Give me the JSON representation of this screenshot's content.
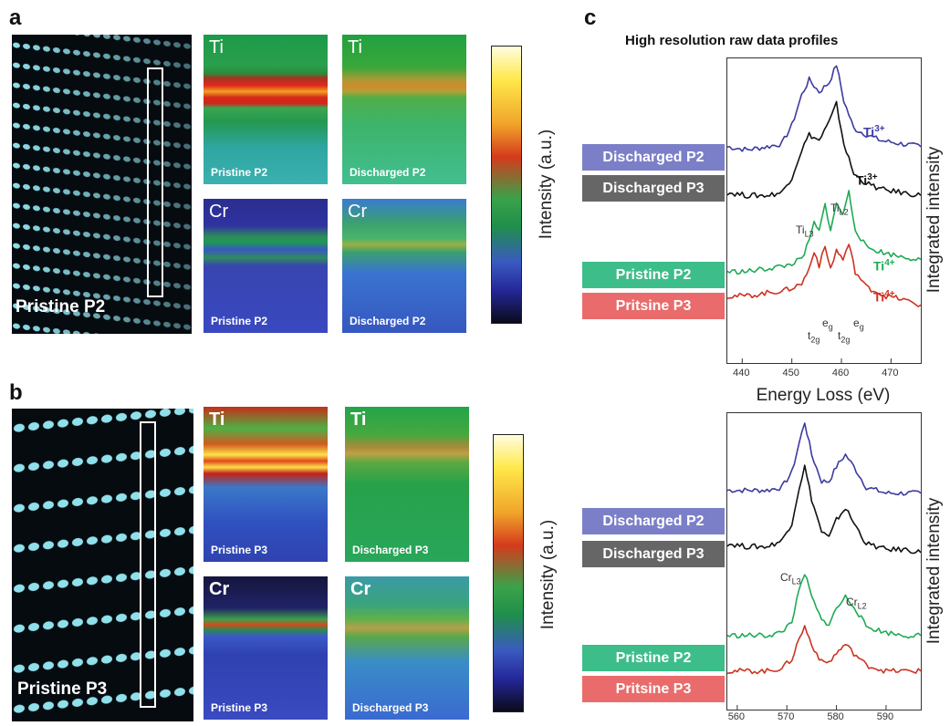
{
  "panels": {
    "a": "a",
    "b": "b",
    "c": "c"
  },
  "stem": {
    "top": "Pristine P2",
    "bottom": "Pristine P3"
  },
  "maps": {
    "a_ti_pristine": {
      "element": "Ti",
      "caption": "Pristine P2"
    },
    "a_ti_discharged": {
      "element": "Ti",
      "caption": "Discharged P2"
    },
    "a_cr_pristine": {
      "element": "Cr",
      "caption": "Pristine P2"
    },
    "a_cr_discharged": {
      "element": "Cr",
      "caption": "Discharged P2"
    },
    "b_ti_pristine": {
      "element": "Ti",
      "caption": "Pristine P3"
    },
    "b_ti_discharged": {
      "element": "Ti",
      "caption": "Discharged P3"
    },
    "b_cr_pristine": {
      "element": "Cr",
      "caption": "Pristine P3"
    },
    "b_cr_discharged": {
      "element": "Cr",
      "caption": "Discharged P3"
    }
  },
  "colorbar": {
    "label": "Intensity (a.u.)"
  },
  "panel_c": {
    "title": "High resolution raw data profiles"
  },
  "legend": {
    "discharged_p2": "Discharged P2",
    "discharged_p3": "Discharged P3",
    "pristine_p2": "Pristine P2",
    "pristine_p3": "Pritsine P3"
  },
  "colors": {
    "discharged_p2": "#3b3ba0",
    "discharged_p3": "#111111",
    "pristine_p2": "#1faa55",
    "pristine_p3": "#cc3322",
    "tag_discharged_p2": "#7b7fc8",
    "tag_discharged_p3": "#666666",
    "tag_pristine_p2": "#3dbd8a",
    "tag_pristine_p3": "#ea6b6b"
  },
  "ions": {
    "ti3_p2": "Ti",
    "ti3_p3": "Ti",
    "ti4_p2": "Ti",
    "ti4_p3": "Ti",
    "charge3": "3+",
    "charge4": "4+"
  },
  "annotations": {
    "ti": "Ti",
    "l3": "L3",
    "l2": "L2",
    "t2g": "t",
    "t2g_sub": "2g",
    "eg": "e",
    "eg_sub": "g",
    "cr": "Cr"
  },
  "chart_data": [
    {
      "type": "line",
      "title": "High resolution raw data profiles",
      "xlabel": "Energy Loss (eV)",
      "ylabel": "Integrated intensity",
      "xlim": [
        437,
        476
      ],
      "xticks": [
        440,
        450,
        460,
        470
      ],
      "series": [
        {
          "name": "Discharged P2",
          "x": [
            437,
            441,
            445,
            448,
            450,
            452,
            453.5,
            455.5,
            457.5,
            459,
            460.5,
            462.5,
            465,
            468,
            472,
            476
          ],
          "y": [
            0.71,
            0.7,
            0.71,
            0.72,
            0.78,
            0.88,
            0.93,
            0.89,
            0.92,
            0.98,
            0.86,
            0.77,
            0.75,
            0.73,
            0.72,
            0.71
          ]
        },
        {
          "name": "Discharged P3",
          "x": [
            437,
            441,
            445,
            448,
            450,
            452,
            453.5,
            455.5,
            457.5,
            459,
            460.5,
            462.5,
            465,
            468,
            472,
            476
          ],
          "y": [
            0.56,
            0.55,
            0.55,
            0.56,
            0.61,
            0.7,
            0.75,
            0.73,
            0.79,
            0.85,
            0.72,
            0.62,
            0.59,
            0.57,
            0.56,
            0.55
          ]
        },
        {
          "name": "Pristine P2",
          "x": [
            437,
            441,
            445,
            449,
            452,
            453.5,
            454.5,
            455.5,
            456.7,
            457.8,
            459,
            460.3,
            461.5,
            462.8,
            465,
            469,
            472,
            476
          ],
          "y": [
            0.3,
            0.3,
            0.31,
            0.32,
            0.34,
            0.4,
            0.46,
            0.43,
            0.52,
            0.44,
            0.52,
            0.49,
            0.56,
            0.44,
            0.38,
            0.36,
            0.35,
            0.34
          ]
        },
        {
          "name": "Pritsine P3",
          "x": [
            437,
            441,
            445,
            449,
            452,
            453.5,
            454.5,
            455.5,
            456.7,
            457.8,
            459,
            460.3,
            461.5,
            462.8,
            465,
            469,
            472,
            476
          ],
          "y": [
            0.22,
            0.22,
            0.23,
            0.24,
            0.26,
            0.31,
            0.37,
            0.32,
            0.38,
            0.31,
            0.37,
            0.34,
            0.39,
            0.3,
            0.25,
            0.22,
            0.21,
            0.19
          ]
        }
      ]
    },
    {
      "type": "line",
      "ylabel": "Integrated intensity",
      "xlim": [
        558,
        597
      ],
      "xticks": [
        560,
        570,
        580,
        590
      ],
      "series": [
        {
          "name": "Discharged P2",
          "x": [
            558,
            562,
            566,
            569,
            571,
            572.5,
            573.6,
            575,
            577,
            578.5,
            580,
            581.8,
            583.5,
            586,
            590,
            594,
            597
          ],
          "y": [
            0.74,
            0.74,
            0.74,
            0.75,
            0.8,
            0.9,
            0.97,
            0.86,
            0.77,
            0.77,
            0.82,
            0.86,
            0.82,
            0.75,
            0.73,
            0.73,
            0.73
          ]
        },
        {
          "name": "Discharged P3",
          "x": [
            558,
            562,
            566,
            569,
            571,
            572.5,
            573.6,
            575,
            577,
            578.5,
            580,
            581.8,
            583.5,
            586,
            590,
            594,
            597
          ],
          "y": [
            0.56,
            0.55,
            0.55,
            0.57,
            0.63,
            0.75,
            0.82,
            0.71,
            0.6,
            0.58,
            0.64,
            0.68,
            0.63,
            0.56,
            0.54,
            0.54,
            0.53
          ]
        },
        {
          "name": "Pristine P2",
          "x": [
            558,
            562,
            566,
            569,
            571,
            572.5,
            573.6,
            575,
            577,
            578.5,
            580,
            581.8,
            583.5,
            586,
            590,
            594,
            597
          ],
          "y": [
            0.25,
            0.25,
            0.25,
            0.26,
            0.3,
            0.4,
            0.46,
            0.38,
            0.3,
            0.29,
            0.34,
            0.38,
            0.35,
            0.28,
            0.26,
            0.25,
            0.25
          ]
        },
        {
          "name": "Pritsine P3",
          "x": [
            558,
            562,
            566,
            569,
            571,
            572.5,
            573.6,
            575,
            577,
            578.5,
            580,
            581.8,
            583.5,
            586,
            590,
            594,
            597
          ],
          "y": [
            0.13,
            0.13,
            0.13,
            0.14,
            0.17,
            0.24,
            0.28,
            0.22,
            0.16,
            0.16,
            0.19,
            0.22,
            0.19,
            0.15,
            0.13,
            0.13,
            0.13
          ]
        }
      ]
    }
  ]
}
